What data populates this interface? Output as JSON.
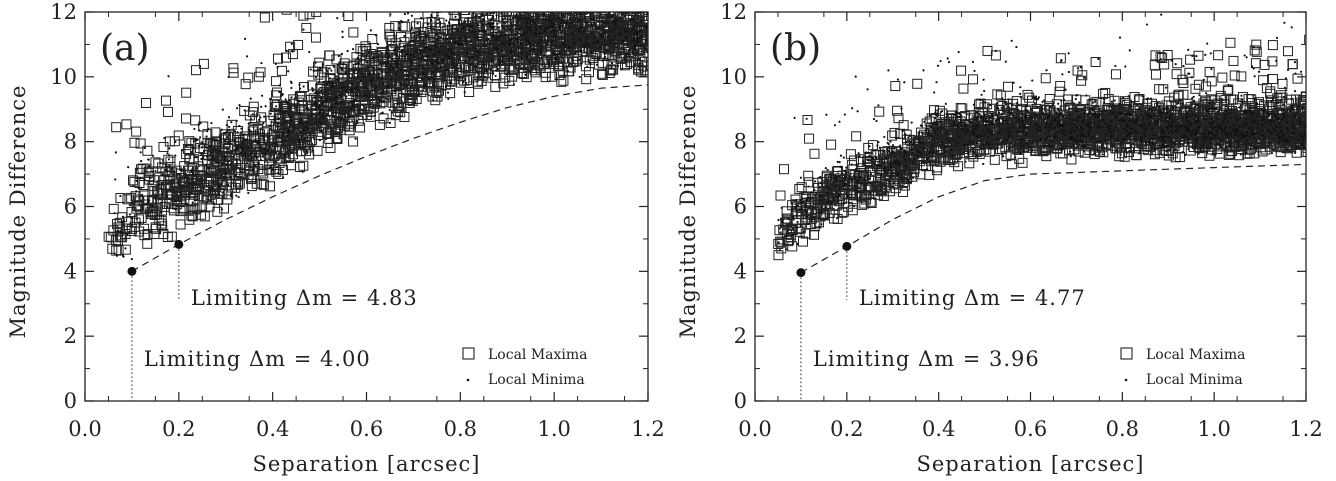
{
  "chart_data": [
    {
      "type": "scatter",
      "panel_label": "(a)",
      "xlabel": "Separation   [arcsec]",
      "ylabel": "Magnitude Difference",
      "xlim": [
        0.0,
        1.2
      ],
      "ylim": [
        0,
        12
      ],
      "x_ticks": [
        "0.0",
        "0.2",
        "0.4",
        "0.6",
        "0.8",
        "1.0",
        "1.2"
      ],
      "y_ticks": [
        "0",
        "2",
        "4",
        "6",
        "8",
        "10",
        "12"
      ],
      "series": [
        {
          "name": "Local Maxima",
          "marker": "open-square",
          "trend": [
            [
              0.07,
              5.2
            ],
            [
              0.1,
              5.9
            ],
            [
              0.2,
              6.6
            ],
            [
              0.3,
              7.2
            ],
            [
              0.4,
              8.0
            ],
            [
              0.5,
              8.9
            ],
            [
              0.6,
              9.7
            ],
            [
              0.7,
              10.3
            ],
            [
              0.8,
              10.8
            ],
            [
              0.9,
              11.1
            ],
            [
              1.0,
              11.3
            ],
            [
              1.2,
              11.4
            ]
          ],
          "spread": 1.4
        },
        {
          "name": "Local Minima",
          "marker": "dot",
          "trend": [
            [
              0.05,
              5.0
            ],
            [
              0.1,
              6.0
            ],
            [
              0.2,
              6.9
            ],
            [
              0.3,
              7.5
            ],
            [
              0.4,
              8.3
            ],
            [
              0.5,
              9.2
            ],
            [
              0.6,
              10.0
            ],
            [
              0.7,
              10.6
            ],
            [
              0.8,
              11.0
            ],
            [
              0.9,
              11.3
            ],
            [
              1.0,
              11.4
            ],
            [
              1.2,
              11.5
            ]
          ],
          "spread": 1.6
        }
      ],
      "limit_curve": [
        [
          0.1,
          4.0
        ],
        [
          0.2,
          4.83
        ],
        [
          0.3,
          5.6
        ],
        [
          0.4,
          6.3
        ],
        [
          0.5,
          6.95
        ],
        [
          0.6,
          7.55
        ],
        [
          0.7,
          8.1
        ],
        [
          0.8,
          8.6
        ],
        [
          0.9,
          9.05
        ],
        [
          1.0,
          9.4
        ],
        [
          1.1,
          9.65
        ],
        [
          1.2,
          9.75
        ]
      ],
      "annotations": [
        {
          "x": 0.1,
          "y": 4.0,
          "text": "Limiting Δm  =  4.00"
        },
        {
          "x": 0.2,
          "y": 4.83,
          "text": "Limiting Δm  =  4.83"
        }
      ],
      "legend": {
        "position": "bottom-right",
        "entries": [
          "Local Maxima",
          "Local Minima"
        ]
      },
      "grid": false
    },
    {
      "type": "scatter",
      "panel_label": "(b)",
      "xlabel": "Separation   [arcsec]",
      "ylabel": "Magnitude Difference",
      "xlim": [
        0.0,
        1.2
      ],
      "ylim": [
        0,
        12
      ],
      "x_ticks": [
        "0.0",
        "0.2",
        "0.4",
        "0.6",
        "0.8",
        "1.0",
        "1.2"
      ],
      "y_ticks": [
        "0",
        "2",
        "4",
        "6",
        "8",
        "10",
        "12"
      ],
      "series": [
        {
          "name": "Local Maxima",
          "marker": "open-square",
          "trend": [
            [
              0.07,
              5.3
            ],
            [
              0.1,
              5.9
            ],
            [
              0.2,
              6.5
            ],
            [
              0.3,
              7.2
            ],
            [
              0.4,
              8.0
            ],
            [
              0.5,
              8.2
            ],
            [
              0.6,
              8.3
            ],
            [
              0.8,
              8.4
            ],
            [
              1.0,
              8.4
            ],
            [
              1.2,
              8.4
            ]
          ],
          "spread": 0.9
        },
        {
          "name": "Local Minima",
          "marker": "dot",
          "trend": [
            [
              0.05,
              5.0
            ],
            [
              0.1,
              6.0
            ],
            [
              0.2,
              6.8
            ],
            [
              0.3,
              7.5
            ],
            [
              0.4,
              8.2
            ],
            [
              0.5,
              8.4
            ],
            [
              0.6,
              8.5
            ],
            [
              0.8,
              8.5
            ],
            [
              1.0,
              8.5
            ],
            [
              1.2,
              8.5
            ]
          ],
          "spread": 1.0
        }
      ],
      "limit_curve": [
        [
          0.1,
          3.96
        ],
        [
          0.2,
          4.77
        ],
        [
          0.3,
          5.6
        ],
        [
          0.4,
          6.3
        ],
        [
          0.5,
          6.8
        ],
        [
          0.6,
          7.0
        ],
        [
          0.7,
          7.05
        ],
        [
          0.8,
          7.1
        ],
        [
          0.9,
          7.15
        ],
        [
          1.0,
          7.2
        ],
        [
          1.1,
          7.25
        ],
        [
          1.2,
          7.3
        ]
      ],
      "annotations": [
        {
          "x": 0.1,
          "y": 3.96,
          "text": "Limiting Δm  =  3.96"
        },
        {
          "x": 0.2,
          "y": 4.77,
          "text": "Limiting Δm  =  4.77"
        }
      ],
      "legend": {
        "position": "bottom-right",
        "entries": [
          "Local Maxima",
          "Local Minima"
        ]
      },
      "grid": false
    }
  ]
}
